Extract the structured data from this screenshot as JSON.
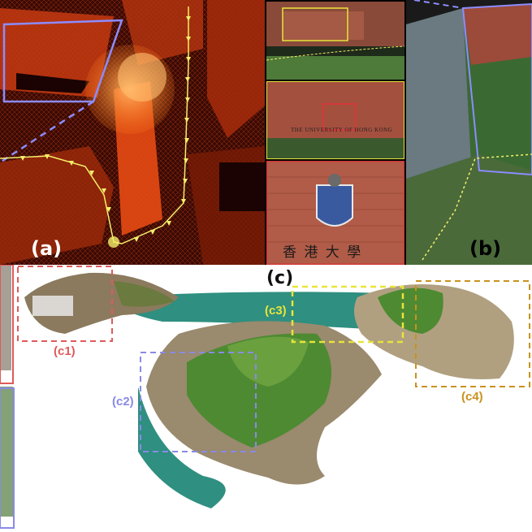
{
  "labels": {
    "a": "(a)",
    "b": "(b)",
    "c": "(c)",
    "c1": "(c1)",
    "c2": "(c2)",
    "c3": "(c3)",
    "c4": "(c4)"
  },
  "sign": {
    "university_text": "THE UNIVERSITY OF HONG KONG",
    "chinese_text": "香 港 大 學"
  },
  "colors": {
    "c1": "#e05a5a",
    "c2": "#8a8ae6",
    "c3": "#e8e43a",
    "c4": "#c9921e",
    "trajectory": "#f4ef6a",
    "map_outline": "#8c8cff",
    "pointcloud": "#e2461a",
    "sea": "#2f8f80"
  }
}
